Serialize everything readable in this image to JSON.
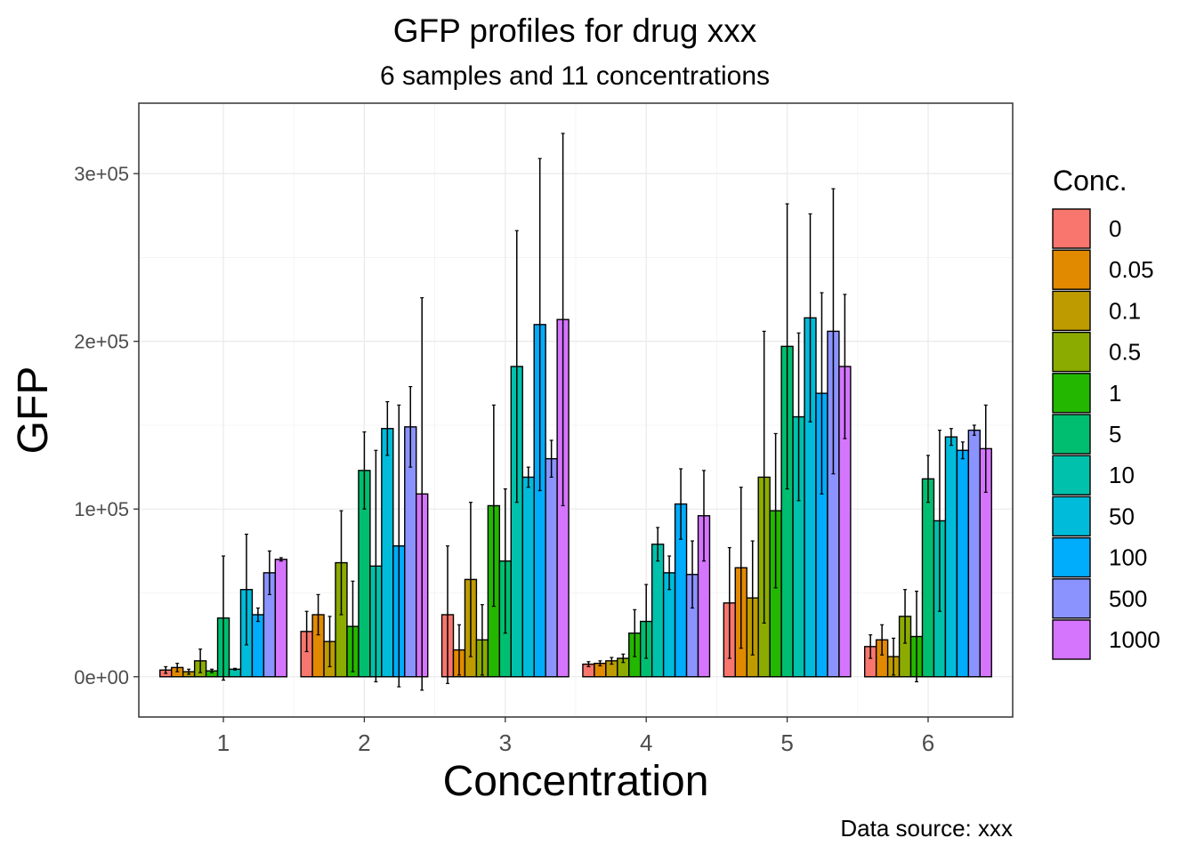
{
  "chart_data": {
    "type": "bar",
    "title": "GFP profiles for drug xxx",
    "subtitle": "6 samples and 11 concentrations",
    "xlabel": "Concentration",
    "ylabel": "GFP",
    "caption": "Data source: xxx",
    "legend_title": "Conc.",
    "legend_position": "right",
    "grid": true,
    "ylim": [
      -24000,
      342000
    ],
    "y_ticks": [
      0,
      100000,
      200000,
      300000
    ],
    "y_tick_labels": [
      "0e+00",
      "1e+05",
      "2e+05",
      "3e+05"
    ],
    "categories": [
      "1",
      "2",
      "3",
      "4",
      "5",
      "6"
    ],
    "series": [
      {
        "name": "0",
        "color": "#F8766D",
        "values": [
          4000,
          27000,
          37000,
          7500,
          44000,
          18000
        ],
        "errors": [
          2000,
          12000,
          41000,
          1500,
          33000,
          7000
        ]
      },
      {
        "name": "0.05",
        "color": "#E18A00",
        "values": [
          5500,
          37000,
          16000,
          8000,
          65000,
          22000
        ],
        "errors": [
          2500,
          12000,
          15000,
          1500,
          48000,
          9000
        ]
      },
      {
        "name": "0.1",
        "color": "#BE9C00",
        "values": [
          3000,
          21000,
          58000,
          9500,
          47000,
          12000
        ],
        "errors": [
          1500,
          15000,
          46000,
          2000,
          34000,
          11000
        ]
      },
      {
        "name": "0.5",
        "color": "#8CAB00",
        "values": [
          9500,
          68000,
          22000,
          11000,
          119000,
          36000
        ],
        "errors": [
          7000,
          31000,
          21000,
          2500,
          87000,
          16000
        ]
      },
      {
        "name": "1",
        "color": "#24B700",
        "values": [
          3500,
          30000,
          102000,
          26000,
          99000,
          24000
        ],
        "errors": [
          1000,
          27000,
          60000,
          14000,
          46000,
          27000
        ]
      },
      {
        "name": "5",
        "color": "#00BE70",
        "values": [
          35000,
          123000,
          69000,
          33000,
          197000,
          118000
        ],
        "errors": [
          37000,
          23000,
          43000,
          22000,
          85000,
          14000
        ]
      },
      {
        "name": "10",
        "color": "#00C1AB",
        "values": [
          4500,
          66000,
          185000,
          79000,
          155000,
          93000
        ],
        "errors": [
          500,
          69000,
          81000,
          10000,
          50000,
          54000
        ]
      },
      {
        "name": "50",
        "color": "#00BBDA",
        "values": [
          52000,
          148000,
          119000,
          62000,
          214000,
          143000
        ],
        "errors": [
          33000,
          16000,
          6000,
          10000,
          62000,
          5000
        ]
      },
      {
        "name": "100",
        "color": "#00ACFC",
        "values": [
          37000,
          78000,
          210000,
          103000,
          169000,
          135000
        ],
        "errors": [
          4000,
          84000,
          99000,
          21000,
          60000,
          5000
        ]
      },
      {
        "name": "500",
        "color": "#8B93FF",
        "values": [
          62000,
          149000,
          130000,
          61000,
          206000,
          147000
        ],
        "errors": [
          13000,
          24000,
          11000,
          20000,
          85000,
          3000
        ]
      },
      {
        "name": "1000",
        "color": "#D575FE",
        "values": [
          70000,
          109000,
          213000,
          96000,
          185000,
          136000
        ],
        "errors": [
          1000,
          117000,
          111000,
          27000,
          43000,
          26000
        ]
      }
    ]
  }
}
